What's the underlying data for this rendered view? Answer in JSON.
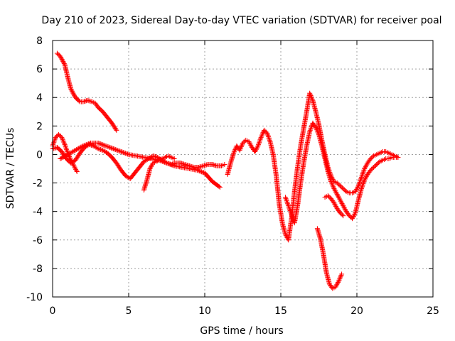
{
  "chart_data": {
    "type": "scatter",
    "title": "Day 210 of 2023, Sidereal Day-to-day VTEC variation (SDTVAR) for receiver poal",
    "xlabel": "GPS time / hours",
    "ylabel": "SDTVAR / TECUs",
    "xlim": [
      0,
      25
    ],
    "ylim": [
      -10,
      8
    ],
    "xticks": [
      0,
      5,
      10,
      15,
      20,
      25
    ],
    "yticks": [
      -10,
      -8,
      -6,
      -4,
      -2,
      0,
      2,
      4,
      6,
      8
    ],
    "grid": true,
    "marker": "+",
    "color": "#ff0000",
    "series": [
      {
        "name": "seg1",
        "x": [
          0.3,
          0.5,
          0.8,
          1.0,
          1.2,
          1.5,
          1.8,
          2.0,
          2.3,
          2.6,
          2.8,
          3.0,
          3.3,
          3.6,
          3.9,
          4.2
        ],
        "y": [
          7.1,
          6.9,
          6.3,
          5.4,
          4.6,
          4.0,
          3.7,
          3.7,
          3.8,
          3.7,
          3.6,
          3.3,
          3.0,
          2.6,
          2.2,
          1.7
        ]
      },
      {
        "name": "seg2",
        "x": [
          0.0,
          0.2,
          0.4,
          0.6,
          0.8,
          1.0,
          1.2,
          1.4,
          1.6
        ],
        "y": [
          0.6,
          1.2,
          1.4,
          1.2,
          0.7,
          0.1,
          -0.4,
          -0.8,
          -1.2
        ]
      },
      {
        "name": "seg3",
        "x": [
          0.0,
          0.3,
          0.6,
          0.9,
          1.2,
          1.5,
          1.8,
          2.1,
          2.4,
          2.7,
          3.0,
          3.3,
          3.6,
          3.9,
          4.2,
          4.5,
          4.8,
          5.1,
          5.4,
          5.7,
          6.0,
          6.3,
          6.6,
          6.9,
          7.2,
          7.5,
          7.8,
          8.1,
          8.4,
          8.7,
          9.0,
          9.3,
          9.6,
          9.9,
          10.2,
          10.5,
          10.8,
          11.1,
          11.3
        ],
        "y": [
          0.4,
          0.5,
          0.2,
          -0.3,
          -0.6,
          -0.4,
          0.1,
          0.5,
          0.7,
          0.6,
          0.4,
          0.3,
          0.1,
          -0.2,
          -0.6,
          -1.1,
          -1.5,
          -1.7,
          -1.3,
          -0.9,
          -0.5,
          -0.3,
          -0.1,
          -0.2,
          -0.4,
          -0.6,
          -0.7,
          -0.6,
          -0.6,
          -0.7,
          -0.8,
          -0.9,
          -0.9,
          -0.8,
          -0.7,
          -0.7,
          -0.8,
          -0.8,
          -0.7
        ]
      },
      {
        "name": "seg4",
        "x": [
          0.5,
          1.0,
          1.5,
          2.0,
          2.5,
          3.0,
          3.5,
          4.0,
          4.5,
          5.0,
          5.5,
          6.0,
          6.5,
          7.0,
          7.5,
          8.0,
          8.5,
          9.0,
          9.5,
          10.0,
          10.5,
          11.0
        ],
        "y": [
          -0.3,
          0.0,
          0.3,
          0.6,
          0.8,
          0.8,
          0.6,
          0.4,
          0.2,
          0.0,
          -0.1,
          -0.2,
          -0.3,
          -0.4,
          -0.6,
          -0.8,
          -0.9,
          -1.0,
          -1.1,
          -1.3,
          -1.9,
          -2.3
        ]
      },
      {
        "name": "seg5",
        "x": [
          6.0,
          6.2,
          6.4,
          6.6,
          6.8,
          7.0,
          7.2,
          7.4,
          7.6,
          7.8,
          8.0
        ],
        "y": [
          -2.5,
          -1.8,
          -1.0,
          -0.6,
          -0.5,
          -0.4,
          -0.3,
          -0.2,
          -0.1,
          -0.2,
          -0.3
        ]
      },
      {
        "name": "seg6",
        "x": [
          11.5,
          11.7,
          11.9,
          12.1,
          12.3,
          12.5,
          12.7,
          12.9,
          13.1,
          13.3,
          13.5,
          13.7,
          13.9,
          14.1,
          14.3,
          14.5,
          14.7,
          14.9,
          15.1,
          15.3,
          15.5,
          15.7,
          15.9,
          16.1,
          16.3,
          16.5,
          16.7,
          16.9,
          17.1,
          17.3,
          17.5,
          17.7,
          17.9,
          18.1,
          18.3,
          18.5,
          18.7,
          18.9,
          19.1,
          19.3,
          19.5,
          19.7,
          19.9,
          20.1,
          20.3,
          20.5,
          20.7,
          20.9,
          21.1,
          21.3,
          21.5,
          21.7,
          21.9,
          22.1,
          22.3,
          22.5,
          22.7
        ],
        "y": [
          -1.4,
          -0.6,
          0.1,
          0.6,
          0.3,
          0.8,
          1.0,
          0.9,
          0.5,
          0.2,
          0.6,
          1.2,
          1.7,
          1.5,
          0.9,
          0.0,
          -1.5,
          -3.5,
          -4.8,
          -5.6,
          -6.0,
          -4.5,
          -2.6,
          -0.9,
          0.6,
          1.8,
          3.0,
          4.3,
          3.8,
          3.0,
          2.1,
          1.0,
          0.0,
          -0.9,
          -1.5,
          -1.9,
          -2.0,
          -2.2,
          -2.4,
          -2.6,
          -2.7,
          -2.7,
          -2.6,
          -2.2,
          -1.6,
          -1.0,
          -0.6,
          -0.3,
          -0.1,
          0.0,
          0.1,
          0.2,
          0.2,
          0.1,
          0.0,
          -0.1,
          -0.2
        ]
      },
      {
        "name": "seg7",
        "x": [
          15.3,
          15.5,
          15.7,
          15.9,
          16.1,
          16.3,
          16.5,
          16.7,
          16.9,
          17.1,
          17.3,
          17.5,
          17.7,
          17.9,
          18.1,
          18.3,
          18.5,
          18.7,
          18.9,
          19.1,
          19.3,
          19.5,
          19.7,
          19.9,
          20.1,
          20.3,
          20.5,
          20.7,
          20.9,
          21.1,
          21.3,
          21.5,
          21.7,
          21.9,
          22.1,
          22.3,
          22.5,
          22.7
        ],
        "y": [
          -3.0,
          -3.6,
          -4.2,
          -4.8,
          -3.6,
          -2.0,
          -0.6,
          0.6,
          1.6,
          2.2,
          1.9,
          1.4,
          0.6,
          -0.3,
          -1.2,
          -1.9,
          -2.4,
          -2.8,
          -3.2,
          -3.6,
          -4.0,
          -4.3,
          -4.5,
          -4.1,
          -3.2,
          -2.4,
          -1.8,
          -1.4,
          -1.1,
          -0.9,
          -0.7,
          -0.5,
          -0.4,
          -0.3,
          -0.3,
          -0.2,
          -0.2,
          -0.2
        ]
      },
      {
        "name": "seg8",
        "x": [
          17.4,
          17.6,
          17.8,
          18.0,
          18.2,
          18.4,
          18.6,
          18.8,
          19.0
        ],
        "y": [
          -5.2,
          -5.9,
          -7.0,
          -8.3,
          -9.1,
          -9.4,
          -9.3,
          -8.9,
          -8.4
        ]
      },
      {
        "name": "seg9",
        "x": [
          17.9,
          18.1,
          18.3,
          18.5,
          18.7,
          18.9,
          19.1
        ],
        "y": [
          -3.0,
          -2.9,
          -3.1,
          -3.4,
          -3.8,
          -4.1,
          -4.3
        ]
      }
    ]
  }
}
